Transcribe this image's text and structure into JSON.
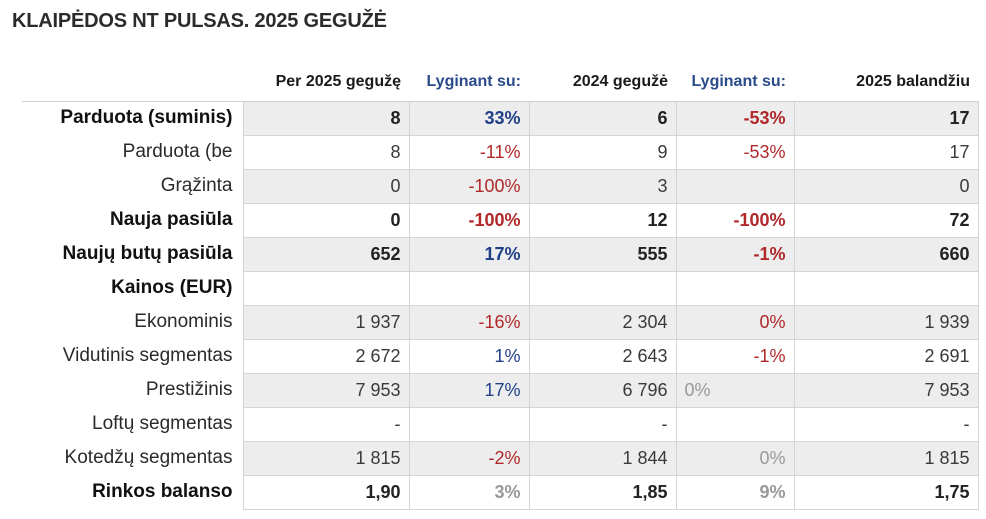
{
  "title": "KLAIPĖDOS NT PULSAS. 2025 GEGUŽĖ",
  "headers": [
    "Per 2025 gegužę",
    "Lyginant su:",
    "2024 gegužė",
    "Lyginant su:",
    "2025 balandžiu"
  ],
  "colors": {
    "negative": "#b0282a",
    "positive": "#1f3f87",
    "muted": "#999999",
    "header_blue": "#2a4a8a"
  },
  "rows": [
    {
      "label": "Parduota (suminis)",
      "cells": [
        "8",
        "33%",
        "6",
        "-53%",
        "17"
      ]
    },
    {
      "label": "Parduota (be",
      "cells": [
        "8",
        "-11%",
        "9",
        "-53%",
        "17"
      ]
    },
    {
      "label": "Grąžinta",
      "cells": [
        "0",
        "-100%",
        "3",
        "",
        "0"
      ]
    },
    {
      "label": "Nauja pasiūla",
      "cells": [
        "0",
        "-100%",
        "12",
        "-100%",
        "72"
      ]
    },
    {
      "label": "Naujų butų pasiūla",
      "cells": [
        "652",
        "17%",
        "555",
        "-1%",
        "660"
      ]
    },
    {
      "label": "Kainos (EUR)",
      "cells": [
        "",
        "",
        "",
        "",
        ""
      ]
    },
    {
      "label": "Ekonominis",
      "cells": [
        "1 937",
        "-16%",
        "2 304",
        "0%",
        "1 939"
      ]
    },
    {
      "label": "Vidutinis segmentas",
      "cells": [
        "2 672",
        "1%",
        "2 643",
        "-1%",
        "2 691"
      ]
    },
    {
      "label": "Prestižinis",
      "cells": [
        "7 953",
        "17%",
        "6 796",
        "0%",
        "7 953"
      ]
    },
    {
      "label": "Loftų segmentas",
      "cells": [
        "-",
        "",
        "-",
        "",
        "-"
      ]
    },
    {
      "label": "Kotedžų segmentas",
      "cells": [
        "1 815",
        "-2%",
        "1 844",
        "0%",
        "1 815"
      ]
    },
    {
      "label": "Rinkos balanso",
      "cells": [
        "1,90",
        "3%",
        "1,85",
        "9%",
        "1,75"
      ]
    }
  ]
}
